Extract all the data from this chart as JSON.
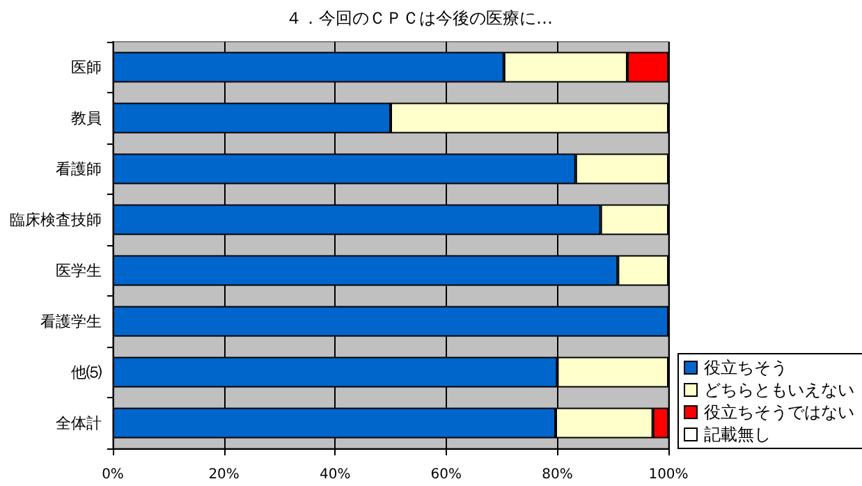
{
  "chart_data": {
    "type": "bar",
    "orientation": "horizontal",
    "stacked": true,
    "title": "４．今回のＣＰＣは今後の医療に…",
    "categories": [
      "医師",
      "教員",
      "看護師",
      "臨床検査技師",
      "医学生",
      "看護学生",
      "他⑸",
      "全体計"
    ],
    "series": [
      {
        "name": "役立ちそう",
        "color": "#0066cc",
        "values": [
          70.4,
          50,
          83.3,
          87.8,
          90.9,
          100,
          80,
          79.7
        ]
      },
      {
        "name": "どちらともいえない",
        "color": "#ffffcc",
        "values": [
          22.2,
          50,
          16.7,
          12.2,
          9.1,
          0,
          20,
          17.5
        ]
      },
      {
        "name": "役立ちそうではない",
        "color": "#ff0000",
        "values": [
          7.4,
          0,
          0,
          0,
          0,
          0,
          0,
          2.8
        ]
      },
      {
        "name": "記載無し",
        "color": "#ffffff",
        "values": [
          0,
          0,
          0,
          0,
          0,
          0,
          0,
          0
        ]
      }
    ],
    "xlim": [
      0,
      100
    ],
    "xticks": [
      {
        "value": 0,
        "label": "0%"
      },
      {
        "value": 20,
        "label": "20%"
      },
      {
        "value": 40,
        "label": "40%"
      },
      {
        "value": 60,
        "label": "60%"
      },
      {
        "value": 80,
        "label": "80%"
      },
      {
        "value": 100,
        "label": "100%"
      }
    ],
    "grid": "x",
    "legend": "right"
  }
}
